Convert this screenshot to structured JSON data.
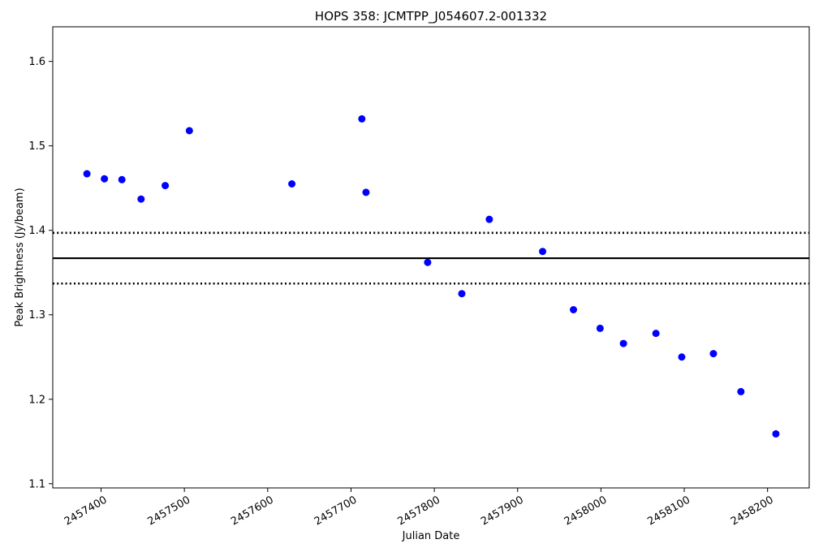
{
  "chart_data": {
    "type": "scatter",
    "title": "HOPS 358: JCMTPP_J054607.2-001332",
    "xlabel": "Julian Date",
    "ylabel": "Peak Brightness (Jy/beam)",
    "xlim": [
      2457342,
      2458250
    ],
    "ylim": [
      1.095,
      1.641
    ],
    "xticks": [
      2457400,
      2457500,
      2457600,
      2457700,
      2457800,
      2457900,
      2458000,
      2458100,
      2458200
    ],
    "yticks": [
      1.1,
      1.2,
      1.3,
      1.4,
      1.5,
      1.6
    ],
    "marker_color": "#0000ff",
    "grid": false,
    "points": [
      {
        "x": 2457383,
        "y": 1.467
      },
      {
        "x": 2457404,
        "y": 1.461
      },
      {
        "x": 2457425,
        "y": 1.46
      },
      {
        "x": 2457448,
        "y": 1.437
      },
      {
        "x": 2457477,
        "y": 1.453
      },
      {
        "x": 2457506,
        "y": 1.518
      },
      {
        "x": 2457629,
        "y": 1.455
      },
      {
        "x": 2457713,
        "y": 1.532
      },
      {
        "x": 2457718,
        "y": 1.445
      },
      {
        "x": 2457792,
        "y": 1.362
      },
      {
        "x": 2457833,
        "y": 1.325
      },
      {
        "x": 2457866,
        "y": 1.413
      },
      {
        "x": 2457930,
        "y": 1.375
      },
      {
        "x": 2457967,
        "y": 1.306
      },
      {
        "x": 2457999,
        "y": 1.284
      },
      {
        "x": 2458027,
        "y": 1.266
      },
      {
        "x": 2458066,
        "y": 1.278
      },
      {
        "x": 2458097,
        "y": 1.25
      },
      {
        "x": 2458135,
        "y": 1.254
      },
      {
        "x": 2458168,
        "y": 1.209
      },
      {
        "x": 2458210,
        "y": 1.159
      }
    ],
    "reference_lines": [
      {
        "y": 1.367,
        "style": "solid"
      },
      {
        "y": 1.397,
        "style": "dotted"
      },
      {
        "y": 1.337,
        "style": "dotted"
      }
    ]
  }
}
